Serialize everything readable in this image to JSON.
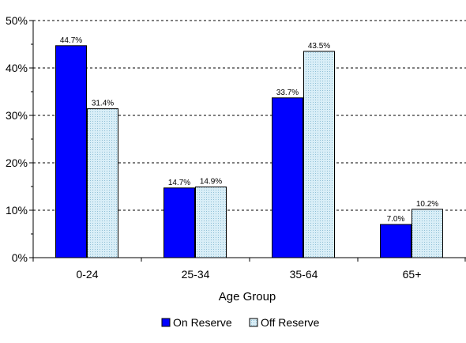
{
  "chart_data": {
    "type": "bar",
    "categories": [
      "0-24",
      "25-34",
      "35-64",
      "65+"
    ],
    "series": [
      {
        "name": "On Reserve",
        "values": [
          44.7,
          14.7,
          33.7,
          7.0
        ],
        "labels": [
          "44.7%",
          "14.7%",
          "33.7%",
          "7.0%"
        ],
        "color": "#0000ff"
      },
      {
        "name": "Off Reserve",
        "values": [
          31.4,
          14.9,
          43.5,
          10.2
        ],
        "labels": [
          "31.4%",
          "14.9%",
          "43.5%",
          "10.2%"
        ],
        "color": "#cfe9f3"
      }
    ],
    "title": "",
    "xlabel": "Age Group",
    "ylabel": "",
    "ylim": [
      0,
      50
    ],
    "yticks": [
      0,
      10,
      20,
      30,
      40,
      50
    ],
    "ytick_labels": [
      "0%",
      "10%",
      "20%",
      "30%",
      "40%",
      "50%"
    ],
    "grid": "horizontal dashed",
    "legend_position": "bottom"
  }
}
